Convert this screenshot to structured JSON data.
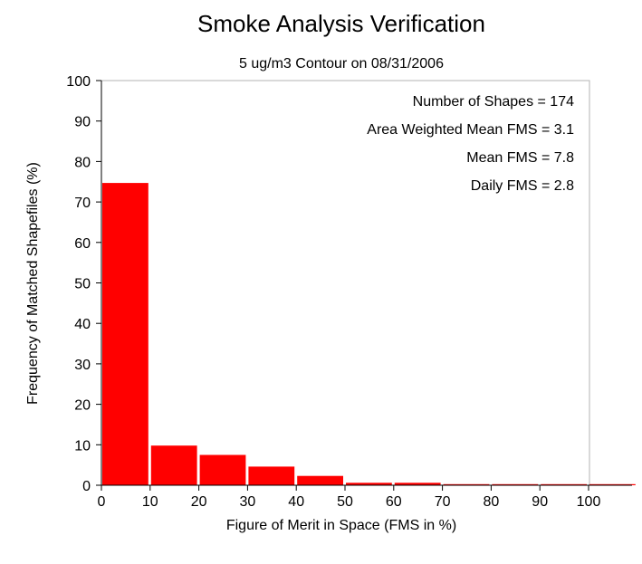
{
  "chart_data": {
    "type": "bar",
    "title": "Smoke Analysis Verification",
    "subtitle": "5 ug/m3 Contour on 08/31/2006",
    "xlabel": "Figure of Merit in Space (FMS in %)",
    "ylabel": "Frequency of Matched Shapefiles (%)",
    "xlim": [
      0,
      110
    ],
    "ylim": [
      0,
      100
    ],
    "xticks": [
      0,
      10,
      20,
      30,
      40,
      50,
      60,
      70,
      80,
      90,
      100
    ],
    "yticks": [
      0,
      10,
      20,
      30,
      40,
      50,
      60,
      70,
      80,
      90,
      100
    ],
    "bins": [
      [
        0,
        10
      ],
      [
        10,
        20
      ],
      [
        20,
        30
      ],
      [
        30,
        40
      ],
      [
        40,
        50
      ],
      [
        50,
        60
      ],
      [
        60,
        70
      ],
      [
        70,
        80
      ],
      [
        80,
        90
      ],
      [
        90,
        100
      ],
      [
        100,
        110
      ]
    ],
    "values": [
      74.7,
      9.8,
      7.5,
      4.6,
      2.3,
      0.6,
      0.6,
      0.0,
      0.0,
      0.0,
      0.0
    ],
    "bar_color": "#ff0000",
    "grid": false,
    "annotations": [
      "Number of Shapes = 174",
      "Area Weighted Mean FMS = 3.1",
      "Mean FMS = 7.8",
      "Daily FMS = 2.8"
    ]
  }
}
